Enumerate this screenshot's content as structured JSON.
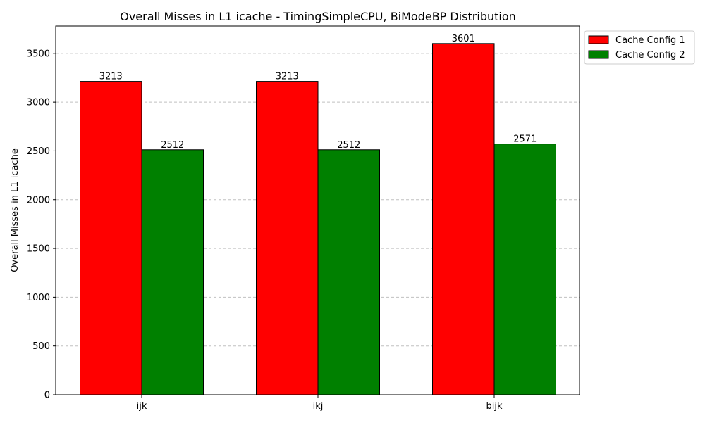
{
  "chart_data": {
    "type": "bar",
    "title": "Overall Misses in L1 icache - TimingSimpleCPU, BiModeBP Distribution",
    "xlabel": "",
    "ylabel": "Overall Misses in L1 icache",
    "categories": [
      "ijk",
      "ikj",
      "bijk"
    ],
    "series": [
      {
        "name": "Cache Config 1",
        "values": [
          3213,
          3213,
          3601
        ],
        "color": "#ff0000"
      },
      {
        "name": "Cache Config 2",
        "values": [
          2512,
          2512,
          2571
        ],
        "color": "#008000"
      }
    ],
    "ylim": [
      0,
      3780
    ],
    "yticks": [
      0,
      500,
      1000,
      1500,
      2000,
      2500,
      3000,
      3500
    ],
    "grid": "y-dashed",
    "legend_position": "outside-top-right"
  }
}
